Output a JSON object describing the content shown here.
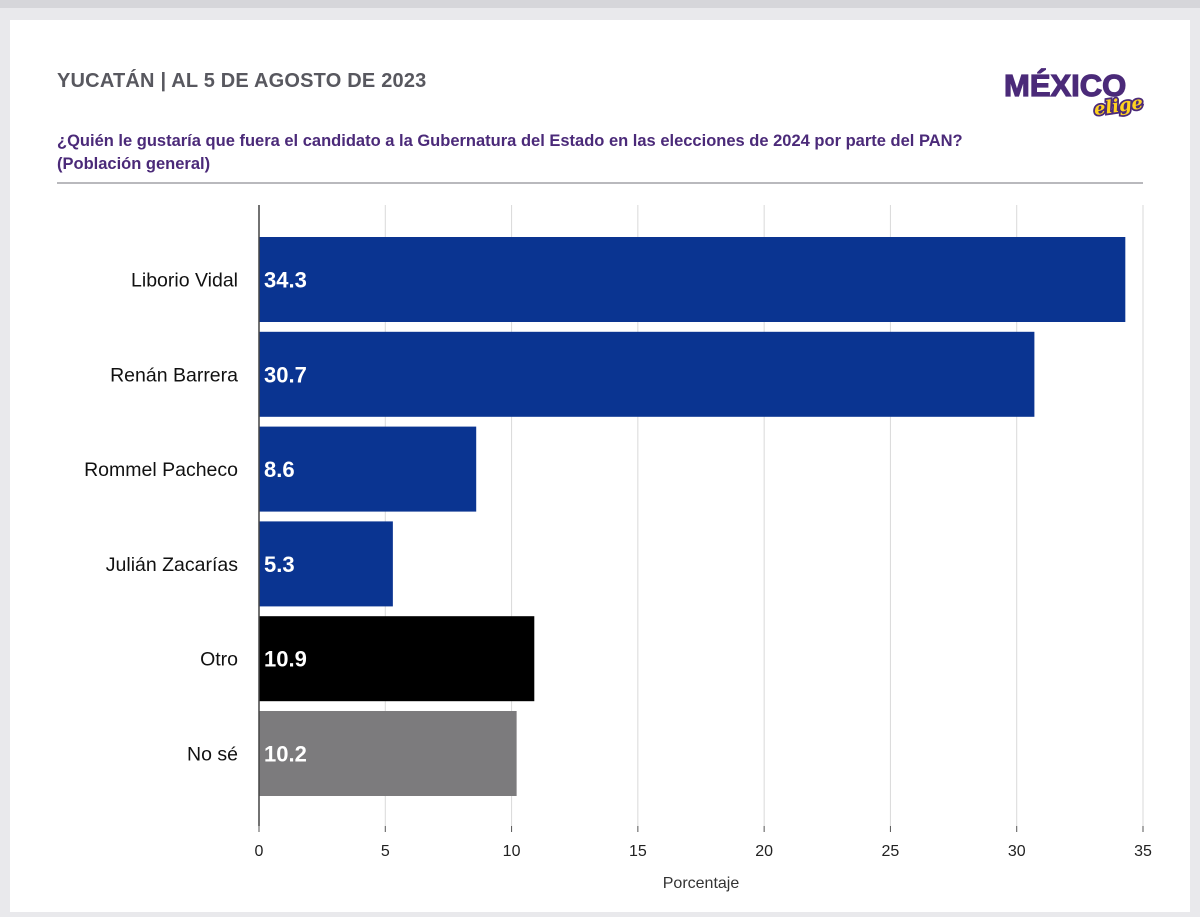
{
  "header": {
    "title": "YUCATÁN | AL 5 DE AGOSTO DE 2023",
    "question": "¿Quién le gustaría que fuera el candidato a la Gubernatura del Estado en las elecciones de 2024 por parte del PAN?",
    "population": "(Población general)"
  },
  "logo": {
    "word_main": "MÉXICO",
    "word_script": "elige"
  },
  "colors": {
    "title_gray": "#58585f",
    "subtitle_purple": "#4b2a79",
    "candidate_blue": "#0a3491",
    "otro_black": "#000000",
    "nose_gray": "#7c7b7d",
    "logo_purple": "#4b2a79",
    "logo_yellow": "#ffd21f"
  },
  "chart_data": {
    "type": "bar",
    "orientation": "horizontal",
    "categories": [
      "Liborio Vidal",
      "Renán Barrera",
      "Rommel Pacheco",
      "Julián Zacarías",
      "Otro",
      "No sé"
    ],
    "values": [
      34.3,
      30.7,
      8.6,
      5.3,
      10.9,
      10.2
    ],
    "value_labels": [
      "34.3",
      "30.7",
      "8.6",
      "5.3",
      "10.9",
      "10.2"
    ],
    "bar_colors": [
      "#0a3491",
      "#0a3491",
      "#0a3491",
      "#0a3491",
      "#000000",
      "#7c7b7d"
    ],
    "xlabel": "Porcentaje",
    "xlim": [
      0,
      35
    ],
    "xticks": [
      0,
      5,
      10,
      15,
      20,
      25,
      30,
      35
    ],
    "grid": "vertical"
  }
}
